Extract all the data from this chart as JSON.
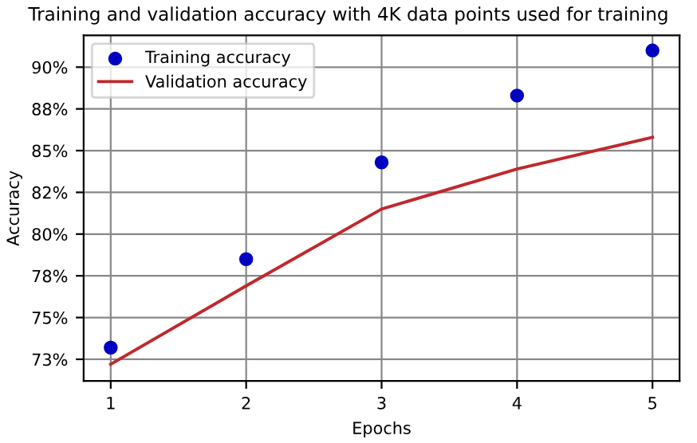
{
  "chart_data": {
    "type": "line",
    "title": "Training and validation accuracy with 4K data points used for training",
    "xlabel": "Epochs",
    "ylabel": "Accuracy",
    "x": [
      1,
      2,
      3,
      4,
      5
    ],
    "series": [
      {
        "name": "Training accuracy",
        "type": "scatter",
        "color": "#0000c0",
        "marker": "circle",
        "values": [
          73.2,
          78.5,
          84.3,
          88.3,
          91.0
        ]
      },
      {
        "name": "Validation accuracy",
        "color": "#c0282c",
        "marker": "none",
        "values": [
          72.2,
          76.9,
          81.5,
          83.9,
          85.8
        ]
      }
    ],
    "xlim": [
      0.8,
      5.2
    ],
    "xticks": [
      1,
      2,
      3,
      4,
      5
    ],
    "ylim": [
      71.2,
      91.9
    ],
    "yticks": [
      {
        "value": 72.5,
        "label": "73%"
      },
      {
        "value": 75,
        "label": "75%"
      },
      {
        "value": 77.5,
        "label": "78%"
      },
      {
        "value": 80,
        "label": "80%"
      },
      {
        "value": 82.5,
        "label": "82%"
      },
      {
        "value": 85,
        "label": "85%"
      },
      {
        "value": 87.5,
        "label": "88%"
      },
      {
        "value": 90,
        "label": "90%"
      }
    ],
    "grid": true,
    "legend": "top left"
  }
}
